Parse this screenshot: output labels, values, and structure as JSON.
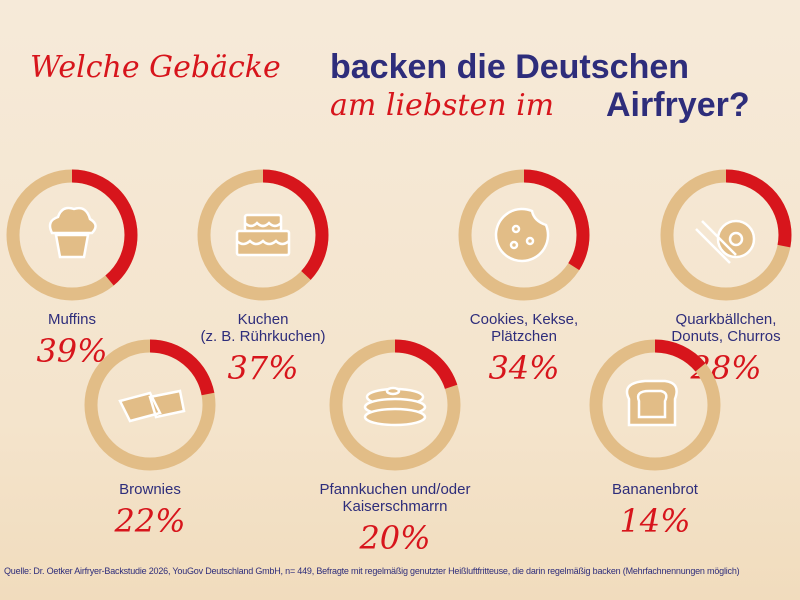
{
  "title": {
    "part1": "Welche Gebäcke",
    "part2": "backen die Deutschen",
    "part3": "am liebsten im",
    "part4": "Airfryer?"
  },
  "colors": {
    "accent": "#d7151c",
    "ring": "#e2bd87",
    "text": "#2e2d7b"
  },
  "items": [
    {
      "label": "Muffins",
      "value": 39,
      "pct": "39%",
      "icon": "muffin-icon"
    },
    {
      "label": "Kuchen\n(z. B. Rührkuchen)",
      "value": 37,
      "pct": "37%",
      "icon": "cake-icon"
    },
    {
      "label": "Cookies, Kekse,\nPlätzchen",
      "value": 34,
      "pct": "34%",
      "icon": "cookie-icon"
    },
    {
      "label": "Quarkbällchen,\nDonuts, Churros",
      "value": 28,
      "pct": "28%",
      "icon": "donut-churro-icon"
    },
    {
      "label": "Brownies",
      "value": 22,
      "pct": "22%",
      "icon": "brownie-icon"
    },
    {
      "label": "Pfannkuchen und/oder\nKaiserschmarrn",
      "value": 20,
      "pct": "20%",
      "icon": "pancake-icon"
    },
    {
      "label": "Bananenbrot",
      "value": 14,
      "pct": "14%",
      "icon": "bread-icon"
    }
  ],
  "source": "Quelle: Dr. Oetker Airfryer-Backstudie 2026, YouGov Deutschland GmbH, n= 449, Befragte mit regelmäßig genutzter Heißluftfritteuse, die darin regelmäßig backen (Mehrfachnennungen möglich)"
}
